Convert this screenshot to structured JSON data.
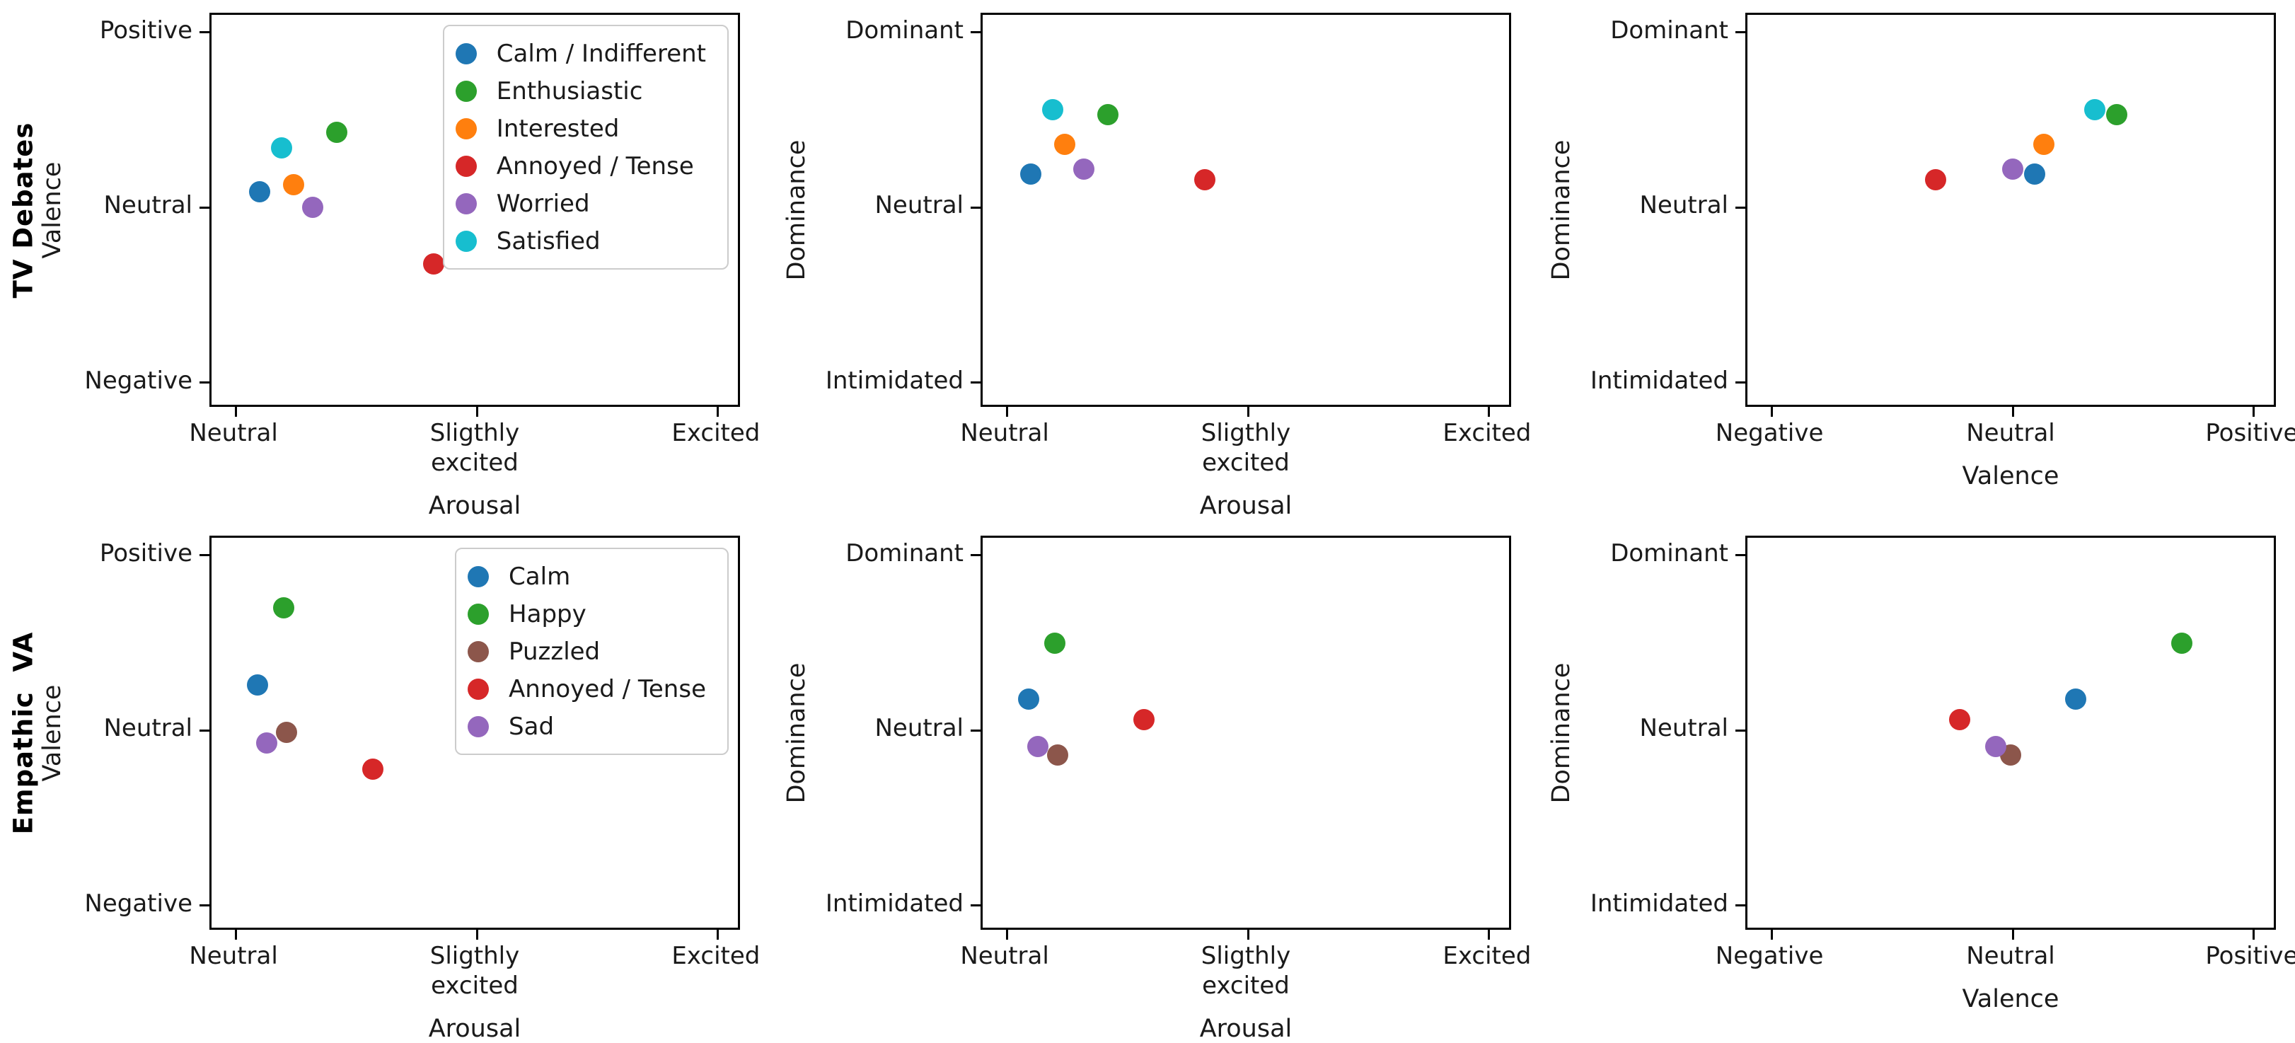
{
  "palette": {
    "blue": "#1f77b4",
    "green": "#2ca02c",
    "orange": "#ff7f0e",
    "red": "#d62728",
    "purple": "#9467bd",
    "cyan": "#17becf",
    "brown": "#8c564b"
  },
  "groups": [
    {
      "name": "TV Debates",
      "emotions": [
        {
          "name": "Calm / Indifferent",
          "color": "#1f77b4",
          "arousal": 0.1,
          "valence": 0.09,
          "dominance": 0.19
        },
        {
          "name": "Enthusiastic",
          "color": "#2ca02c",
          "arousal": 0.42,
          "valence": 0.43,
          "dominance": 0.53
        },
        {
          "name": "Interested",
          "color": "#ff7f0e",
          "arousal": 0.24,
          "valence": 0.13,
          "dominance": 0.36
        },
        {
          "name": "Annoyed / Tense",
          "color": "#d62728",
          "arousal": 0.82,
          "valence": -0.32,
          "dominance": 0.16
        },
        {
          "name": "Worried",
          "color": "#9467bd",
          "arousal": 0.32,
          "valence": 0.0,
          "dominance": 0.22
        },
        {
          "name": "Satisfied",
          "color": "#17becf",
          "arousal": 0.19,
          "valence": 0.34,
          "dominance": 0.56
        }
      ]
    },
    {
      "name": "Empathic  VA",
      "emotions": [
        {
          "name": "Calm",
          "color": "#1f77b4",
          "arousal": 0.09,
          "valence": 0.26,
          "dominance": 0.18
        },
        {
          "name": "Happy",
          "color": "#2ca02c",
          "arousal": 0.2,
          "valence": 0.7,
          "dominance": 0.5
        },
        {
          "name": "Puzzled",
          "color": "#8c564b",
          "arousal": 0.21,
          "valence": -0.01,
          "dominance": -0.14
        },
        {
          "name": "Annoyed / Tense",
          "color": "#d62728",
          "arousal": 0.57,
          "valence": -0.22,
          "dominance": 0.06
        },
        {
          "name": "Sad",
          "color": "#9467bd",
          "arousal": 0.13,
          "valence": -0.07,
          "dominance": -0.09
        }
      ]
    }
  ],
  "chart_data": [
    {
      "id": "tv-valence-arousal",
      "type": "scatter",
      "row_label": "TV Debates",
      "xlabel": "Arousal",
      "ylabel": "Valence",
      "xlim": [
        -0.1,
        2.1
      ],
      "ylim": [
        -1.15,
        1.1
      ],
      "xticks": {
        "values": [
          0,
          1,
          2
        ],
        "labels": [
          "Neutral",
          "Sligthly\nexcited",
          "Excited"
        ]
      },
      "yticks": {
        "values": [
          -1,
          0,
          1
        ],
        "labels": [
          "Negative",
          "Neutral",
          "Positive"
        ]
      },
      "legend": true,
      "legend_position": "upper right",
      "series": [
        {
          "name": "Calm / Indifferent",
          "color": "#1f77b4",
          "x": 0.1,
          "y": 0.09
        },
        {
          "name": "Enthusiastic",
          "color": "#2ca02c",
          "x": 0.42,
          "y": 0.43
        },
        {
          "name": "Interested",
          "color": "#ff7f0e",
          "x": 0.24,
          "y": 0.13
        },
        {
          "name": "Annoyed / Tense",
          "color": "#d62728",
          "x": 0.82,
          "y": -0.32
        },
        {
          "name": "Worried",
          "color": "#9467bd",
          "x": 0.32,
          "y": 0.0
        },
        {
          "name": "Satisfied",
          "color": "#17becf",
          "x": 0.19,
          "y": 0.34
        }
      ]
    },
    {
      "id": "tv-dominance-arousal",
      "type": "scatter",
      "row_label": null,
      "xlabel": "Arousal",
      "ylabel": "Dominance",
      "xlim": [
        -0.1,
        2.1
      ],
      "ylim": [
        -1.15,
        1.1
      ],
      "xticks": {
        "values": [
          0,
          1,
          2
        ],
        "labels": [
          "Neutral",
          "Sligthly\nexcited",
          "Excited"
        ]
      },
      "yticks": {
        "values": [
          -1,
          0,
          1
        ],
        "labels": [
          "Intimidated",
          "Neutral",
          "Dominant"
        ]
      },
      "legend": false,
      "series": [
        {
          "name": "Calm / Indifferent",
          "color": "#1f77b4",
          "x": 0.1,
          "y": 0.19
        },
        {
          "name": "Enthusiastic",
          "color": "#2ca02c",
          "x": 0.42,
          "y": 0.53
        },
        {
          "name": "Interested",
          "color": "#ff7f0e",
          "x": 0.24,
          "y": 0.36
        },
        {
          "name": "Annoyed / Tense",
          "color": "#d62728",
          "x": 0.82,
          "y": 0.16
        },
        {
          "name": "Worried",
          "color": "#9467bd",
          "x": 0.32,
          "y": 0.22
        },
        {
          "name": "Satisfied",
          "color": "#17becf",
          "x": 0.19,
          "y": 0.56
        }
      ]
    },
    {
      "id": "tv-dominance-valence",
      "type": "scatter",
      "row_label": null,
      "xlabel": "Valence",
      "ylabel": "Dominance",
      "xlim": [
        -1.1,
        1.1
      ],
      "ylim": [
        -1.15,
        1.1
      ],
      "xticks": {
        "values": [
          -1,
          0,
          1
        ],
        "labels": [
          "Negative",
          "Neutral",
          "Positive"
        ]
      },
      "yticks": {
        "values": [
          -1,
          0,
          1
        ],
        "labels": [
          "Intimidated",
          "Neutral",
          "Dominant"
        ]
      },
      "legend": false,
      "series": [
        {
          "name": "Calm / Indifferent",
          "color": "#1f77b4",
          "x": 0.09,
          "y": 0.19
        },
        {
          "name": "Enthusiastic",
          "color": "#2ca02c",
          "x": 0.43,
          "y": 0.53
        },
        {
          "name": "Interested",
          "color": "#ff7f0e",
          "x": 0.13,
          "y": 0.36
        },
        {
          "name": "Annoyed / Tense",
          "color": "#d62728",
          "x": -0.32,
          "y": 0.16
        },
        {
          "name": "Worried",
          "color": "#9467bd",
          "x": 0.0,
          "y": 0.22
        },
        {
          "name": "Satisfied",
          "color": "#17becf",
          "x": 0.34,
          "y": 0.56
        }
      ]
    },
    {
      "id": "eva-valence-arousal",
      "type": "scatter",
      "row_label": "Empathic  VA",
      "xlabel": "Arousal",
      "ylabel": "Valence",
      "xlim": [
        -0.1,
        2.1
      ],
      "ylim": [
        -1.15,
        1.1
      ],
      "xticks": {
        "values": [
          0,
          1,
          2
        ],
        "labels": [
          "Neutral",
          "Sligthly\nexcited",
          "Excited"
        ]
      },
      "yticks": {
        "values": [
          -1,
          0,
          1
        ],
        "labels": [
          "Negative",
          "Neutral",
          "Positive"
        ]
      },
      "legend": true,
      "legend_position": "upper right",
      "series": [
        {
          "name": "Calm",
          "color": "#1f77b4",
          "x": 0.09,
          "y": 0.26
        },
        {
          "name": "Happy",
          "color": "#2ca02c",
          "x": 0.2,
          "y": 0.7
        },
        {
          "name": "Puzzled",
          "color": "#8c564b",
          "x": 0.21,
          "y": -0.01
        },
        {
          "name": "Annoyed / Tense",
          "color": "#d62728",
          "x": 0.57,
          "y": -0.22
        },
        {
          "name": "Sad",
          "color": "#9467bd",
          "x": 0.13,
          "y": -0.07
        }
      ]
    },
    {
      "id": "eva-dominance-arousal",
      "type": "scatter",
      "row_label": null,
      "xlabel": "Arousal",
      "ylabel": "Dominance",
      "xlim": [
        -0.1,
        2.1
      ],
      "ylim": [
        -1.15,
        1.1
      ],
      "xticks": {
        "values": [
          0,
          1,
          2
        ],
        "labels": [
          "Neutral",
          "Sligthly\nexcited",
          "Excited"
        ]
      },
      "yticks": {
        "values": [
          -1,
          0,
          1
        ],
        "labels": [
          "Intimidated",
          "Neutral",
          "Dominant"
        ]
      },
      "legend": false,
      "series": [
        {
          "name": "Calm",
          "color": "#1f77b4",
          "x": 0.09,
          "y": 0.18
        },
        {
          "name": "Happy",
          "color": "#2ca02c",
          "x": 0.2,
          "y": 0.5
        },
        {
          "name": "Puzzled",
          "color": "#8c564b",
          "x": 0.21,
          "y": -0.14
        },
        {
          "name": "Annoyed / Tense",
          "color": "#d62728",
          "x": 0.57,
          "y": 0.06
        },
        {
          "name": "Sad",
          "color": "#9467bd",
          "x": 0.13,
          "y": -0.09
        }
      ]
    },
    {
      "id": "eva-dominance-valence",
      "type": "scatter",
      "row_label": null,
      "xlabel": "Valence",
      "ylabel": "Dominance",
      "xlim": [
        -1.1,
        1.1
      ],
      "ylim": [
        -1.15,
        1.1
      ],
      "xticks": {
        "values": [
          -1,
          0,
          1
        ],
        "labels": [
          "Negative",
          "Neutral",
          "Positive"
        ]
      },
      "yticks": {
        "values": [
          -1,
          0,
          1
        ],
        "labels": [
          "Intimidated",
          "Neutral",
          "Dominant"
        ]
      },
      "legend": false,
      "series": [
        {
          "name": "Calm",
          "color": "#1f77b4",
          "x": 0.26,
          "y": 0.18
        },
        {
          "name": "Happy",
          "color": "#2ca02c",
          "x": 0.7,
          "y": 0.5
        },
        {
          "name": "Puzzled",
          "color": "#8c564b",
          "x": -0.01,
          "y": -0.14
        },
        {
          "name": "Annoyed / Tense",
          "color": "#d62728",
          "x": -0.22,
          "y": 0.06
        },
        {
          "name": "Sad",
          "color": "#9467bd",
          "x": -0.07,
          "y": -0.09
        }
      ]
    }
  ]
}
